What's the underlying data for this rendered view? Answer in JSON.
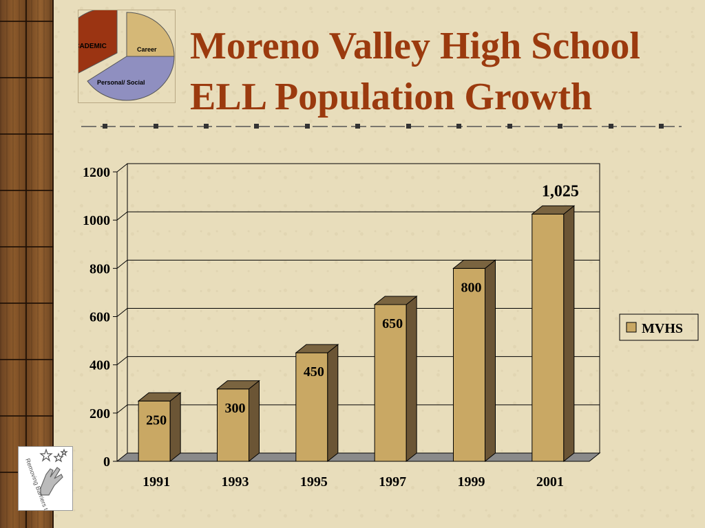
{
  "title": {
    "line1": "Moreno Valley High School",
    "line2": "ELL Population Growth"
  },
  "pie_icon": {
    "segments": [
      "ACADEMIC",
      "Career",
      "Personal/ Social"
    ],
    "colors": {
      "academic": "#9b3412",
      "career": "#d5b877",
      "personal": "#8f8fc0"
    }
  },
  "logo": {
    "text": "Removing Barriers to Learning",
    "icon": "stars-hand-icon"
  },
  "colors": {
    "title": "#9b3a0e",
    "bar_front": "#c9a864",
    "bar_side": "#6b5535",
    "bar_top": "#7a6440",
    "floor": "#8a8a8a"
  },
  "chart_data": {
    "type": "bar",
    "categories": [
      "1991",
      "1993",
      "1995",
      "1997",
      "1999",
      "2001"
    ],
    "series": [
      {
        "name": "MVHS",
        "values": [
          250,
          300,
          450,
          650,
          800,
          1025
        ]
      }
    ],
    "data_labels": [
      "250",
      "300",
      "450",
      "650",
      "800",
      "1,025"
    ],
    "yticks": [
      "0",
      "200",
      "400",
      "600",
      "800",
      "1000",
      "1200"
    ],
    "ylim": [
      0,
      1200
    ],
    "grid": true,
    "legend": "right",
    "three_d": true
  }
}
